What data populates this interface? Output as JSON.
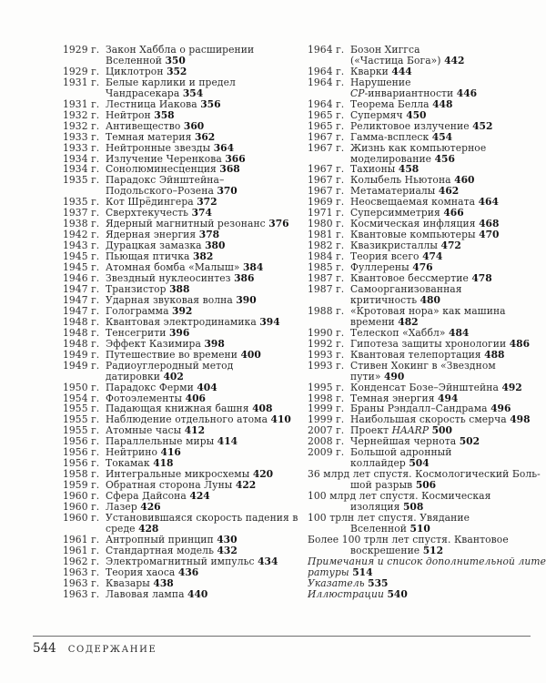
{
  "footer": {
    "page_number": "544",
    "section_title": "СОДЕРЖАНИЕ"
  },
  "toc": {
    "columns": [
      {
        "side": "left",
        "entries": [
          {
            "year": "1929 г.",
            "text": "Закон Хаббла о расширении\nВселенной",
            "page": "350"
          },
          {
            "year": "1929 г.",
            "text": "Циклотрон",
            "page": "352"
          },
          {
            "year": "1931 г.",
            "text": "Белые карлики и предел\nЧандрасекара",
            "page": "354"
          },
          {
            "year": "1931 г.",
            "text": "Лестница Иакова",
            "page": "356"
          },
          {
            "year": "1932 г.",
            "text": "Нейтрон",
            "page": "358"
          },
          {
            "year": "1932 г.",
            "text": "Антивещество",
            "page": "360"
          },
          {
            "year": "1933 г.",
            "text": "Темная материя",
            "page": "362"
          },
          {
            "year": "1933 г.",
            "text": "Нейтронные звезды",
            "page": "364"
          },
          {
            "year": "1934 г.",
            "text": "Излучение Черенкова",
            "page": "366"
          },
          {
            "year": "1934 г.",
            "text": "Сонолюминесценция",
            "page": "368"
          },
          {
            "year": "1935 г.",
            "text": "Парадокс Эйнштейна–\nПодольского–Розена",
            "page": "370"
          },
          {
            "year": "1935 г.",
            "text": "Кот Шрёдингера",
            "page": "372"
          },
          {
            "year": "1937 г.",
            "text": "Сверхтекучесть",
            "page": "374"
          },
          {
            "year": "1938 г.",
            "text": "Ядерный магнитный резонанс",
            "page": "376"
          },
          {
            "year": "1942 г.",
            "text": "Ядерная энергия",
            "page": "378"
          },
          {
            "year": "1943 г.",
            "text": "Дурацкая замазка",
            "page": "380"
          },
          {
            "year": "1945 г.",
            "text": "Пьющая птичка",
            "page": "382"
          },
          {
            "year": "1945 г.",
            "text": "Атомная бомба «Малыш»",
            "page": "384"
          },
          {
            "year": "1946 г.",
            "text": "Звездный нуклеосинтез",
            "page": "386"
          },
          {
            "year": "1947 г.",
            "text": "Транзистор",
            "page": "388"
          },
          {
            "year": "1947 г.",
            "text": "Ударная звуковая волна",
            "page": "390"
          },
          {
            "year": "1947 г.",
            "text": "Голограмма",
            "page": "392"
          },
          {
            "year": "1948 г.",
            "text": "Квантовая электродинамика",
            "page": "394"
          },
          {
            "year": "1948 г.",
            "text": "Тенсегрити",
            "page": "396"
          },
          {
            "year": "1948 г.",
            "text": "Эффект Казимира",
            "page": "398"
          },
          {
            "year": "1949 г.",
            "text": "Путешествие во времени",
            "page": "400"
          },
          {
            "year": "1949 г.",
            "text": "Радиоуглеродный метод\nдатировки",
            "page": "402"
          },
          {
            "year": "1950 г.",
            "text": "Парадокс Ферми",
            "page": "404"
          },
          {
            "year": "1954 г.",
            "text": "Фотоэлементы",
            "page": "406"
          },
          {
            "year": "1955 г.",
            "text": "Падающая книжная башня",
            "page": "408"
          },
          {
            "year": "1955 г.",
            "text": "Наблюдение отдельного атома",
            "page": "410"
          },
          {
            "year": "1955 г.",
            "text": "Атомные часы",
            "page": "412"
          },
          {
            "year": "1956 г.",
            "text": "Параллельные миры",
            "page": "414"
          },
          {
            "year": "1956 г.",
            "text": "Нейтрино",
            "page": "416"
          },
          {
            "year": "1956 г.",
            "text": "Токамак",
            "page": "418"
          },
          {
            "year": "1958 г.",
            "text": "Интегральные микросхемы",
            "page": "420"
          },
          {
            "year": "1959 г.",
            "text": "Обратная сторона Луны",
            "page": "422"
          },
          {
            "year": "1960 г.",
            "text": "Сфера Дайсона",
            "page": "424"
          },
          {
            "year": "1960 г.",
            "text": "Лазер",
            "page": "426"
          },
          {
            "year": "1960 г.",
            "text": "Установившаяся скорость падения в\nсреде",
            "page": "428"
          },
          {
            "year": "1961 г.",
            "text": "Антропный принцип",
            "page": "430"
          },
          {
            "year": "1961 г.",
            "text": "Стандартная модель",
            "page": "432"
          },
          {
            "year": "1962 г.",
            "text": "Электромагнитный импульс",
            "page": "434"
          },
          {
            "year": "1963 г.",
            "text": "Теория хаоса",
            "page": "436"
          },
          {
            "year": "1963 г.",
            "text": "Квазары",
            "page": "438"
          },
          {
            "year": "1963 г.",
            "text": "Лавовая лампа",
            "page": "440"
          }
        ]
      },
      {
        "side": "right",
        "entries": [
          {
            "year": "1964 г.",
            "text": "Бозон Хиггса\n(«Частица Бога»)",
            "page": "442"
          },
          {
            "year": "1964 г.",
            "text": "Кварки",
            "page": "444"
          },
          {
            "year": "1964 г.",
            "text": "Нарушение\n*CP*-инвариантности",
            "page": "446"
          },
          {
            "year": "1964 г.",
            "text": "Теорема Белла",
            "page": "448"
          },
          {
            "year": "1965 г.",
            "text": "Супермяч",
            "page": "450"
          },
          {
            "year": "1965 г.",
            "text": "Реликтовое излучение",
            "page": "452"
          },
          {
            "year": "1967 г.",
            "text": "Гамма-всплеск",
            "page": "454"
          },
          {
            "year": "1967 г.",
            "text": "Жизнь как компьютерное\nмоделирование",
            "page": "456"
          },
          {
            "year": "1967 г.",
            "text": "Тахионы",
            "page": "458"
          },
          {
            "year": "1967 г.",
            "text": "Колыбель Ньютона",
            "page": "460"
          },
          {
            "year": "1967 г.",
            "text": "Метаматериалы",
            "page": "462"
          },
          {
            "year": "1969 г.",
            "text": "Неосвещаемая комната",
            "page": "464"
          },
          {
            "year": "1971 г.",
            "text": "Суперсимметрия",
            "page": "466"
          },
          {
            "year": "1980 г.",
            "text": "Космическая инфляция",
            "page": "468"
          },
          {
            "year": "1981 г.",
            "text": "Квантовые компьютеры",
            "page": "470"
          },
          {
            "year": "1982 г.",
            "text": "Квазикристаллы",
            "page": "472"
          },
          {
            "year": "1984 г.",
            "text": "Теория всего",
            "page": "474"
          },
          {
            "year": "1985 г.",
            "text": "Фуллерены",
            "page": "476"
          },
          {
            "year": "1987 г.",
            "text": "Квантовое бессмертие",
            "page": "478"
          },
          {
            "year": "1987 г.",
            "text": "Самоорганизованная\nкритичность",
            "page": "480"
          },
          {
            "year": "1988 г.",
            "text": "«Кротовая нора» как машина\nвремени",
            "page": "482"
          },
          {
            "year": "1990 г.",
            "text": "Телескоп «Хаббл»",
            "page": "484"
          },
          {
            "year": "1992 г.",
            "text": "Гипотеза защиты хронологии",
            "page": "486"
          },
          {
            "year": "1993 г.",
            "text": "Квантовая телепортация",
            "page": "488"
          },
          {
            "year": "1993 г.",
            "text": "Стивен Хокинг в «Звездном\nпути»",
            "page": "490"
          },
          {
            "year": "1995 г.",
            "text": "Конденсат Бозе–Эйнштейна",
            "page": "492"
          },
          {
            "year": "1998 г.",
            "text": "Темная энергия",
            "page": "494"
          },
          {
            "year": "1999 г.",
            "text": "Браны Рэндалл–Сандрама",
            "page": "496"
          },
          {
            "year": "1999 г.",
            "text": "Наибольшая скорость смерча",
            "page": "498"
          },
          {
            "year": "2007 г.",
            "text": "Проект *HAARP*",
            "page": "500"
          },
          {
            "year": "2008 г.",
            "text": "Чернейшая чернота",
            "page": "502"
          },
          {
            "year": "2009 г.",
            "text": "Большой адронный\nколлайдер",
            "page": "504"
          },
          {
            "year": "",
            "hang": true,
            "text": "36 млрд лет спустя. Космологический Боль-\nшой разрыв",
            "page": "506"
          },
          {
            "year": "",
            "hang": true,
            "text": "100 млрд лет спустя. Космическая\nизоляция",
            "page": "508"
          },
          {
            "year": "",
            "hang": true,
            "text": "100 трлн лет спустя. Увядание\nВселенной",
            "page": "510"
          },
          {
            "year": "",
            "hang": true,
            "text": "Более 100 трлн лет спустя. Квантовое\nвоскрешение",
            "page": "512"
          },
          {
            "year": "",
            "italic": true,
            "text": "Примечания и список дополнительной лите-\nратуры",
            "page": "514"
          },
          {
            "year": "",
            "italic": true,
            "text": "Указатель",
            "page": "535"
          },
          {
            "year": "",
            "italic": true,
            "text": "Иллюстрации",
            "page": "540"
          }
        ]
      }
    ]
  }
}
